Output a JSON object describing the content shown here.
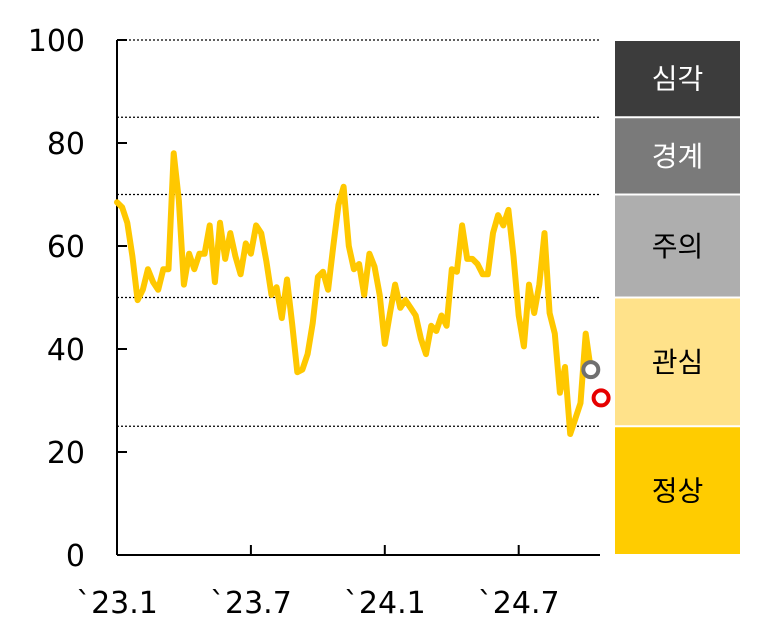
{
  "chart_data": {
    "type": "line",
    "title": "",
    "xlabel": "",
    "ylabel": "",
    "ylim": [
      0,
      100
    ],
    "yticks": [
      "0",
      "20",
      "40",
      "60",
      "80",
      "100"
    ],
    "xtick_labels": [
      "`23.1",
      "`23.7",
      "`24.1",
      "`24.7"
    ],
    "xtick_index": [
      0,
      26,
      52,
      78
    ],
    "grid": "dotted horizontal lines at band thresholds",
    "thresholds": [
      25,
      50,
      70,
      85,
      100
    ],
    "line_color": "#FFC800",
    "series": [
      {
        "values": [
          68.5,
          67.5,
          64.5,
          58,
          49.5,
          51.5,
          55.5,
          53,
          51.5,
          55.5,
          55.5,
          78,
          69,
          52.5,
          58.5,
          55.5,
          58.5,
          58.5,
          64,
          53,
          64.5,
          57.5,
          62.5,
          58,
          54.5,
          60.5,
          58.5,
          64,
          62.5,
          57,
          50.5,
          52,
          46,
          53.5,
          45,
          35.5,
          36,
          39,
          45,
          54,
          55,
          51.5,
          60,
          68,
          71.5,
          60,
          55.5,
          56.5,
          50.5,
          58.5,
          56,
          50.5,
          41,
          47,
          52.5,
          48,
          49.5,
          48,
          46.5,
          42,
          39,
          44.5,
          43.5,
          46.5,
          44.5,
          55.5,
          55,
          64,
          57.5,
          57.5,
          56.5,
          54.5,
          54.5,
          62.5,
          66,
          64,
          67,
          58,
          46.5,
          40.5,
          52.5,
          47,
          52.5,
          62.5,
          47,
          43,
          31.5,
          36.5,
          23.5,
          26.5,
          29.5,
          43,
          36
        ]
      }
    ],
    "markers": [
      {
        "index": 92,
        "value": 36,
        "color": "#707070"
      },
      {
        "index": 94,
        "value": 30.5,
        "color": "#E60000"
      }
    ],
    "bands": [
      {
        "label": "심각",
        "from": 85,
        "to": 100,
        "color": "#3C3C3C",
        "text_color": "#FFFFFF"
      },
      {
        "label": "경계",
        "from": 70,
        "to": 85,
        "color": "#7A7A7A",
        "text_color": "#FFFFFF"
      },
      {
        "label": "주의",
        "from": 50,
        "to": 70,
        "color": "#AEAEAE",
        "text_color": "#000000"
      },
      {
        "label": "관심",
        "from": 25,
        "to": 50,
        "color": "#FFE28A",
        "text_color": "#000000"
      },
      {
        "label": "정상",
        "from": 0,
        "to": 25,
        "color": "#FFCC00",
        "text_color": "#000000"
      }
    ]
  }
}
